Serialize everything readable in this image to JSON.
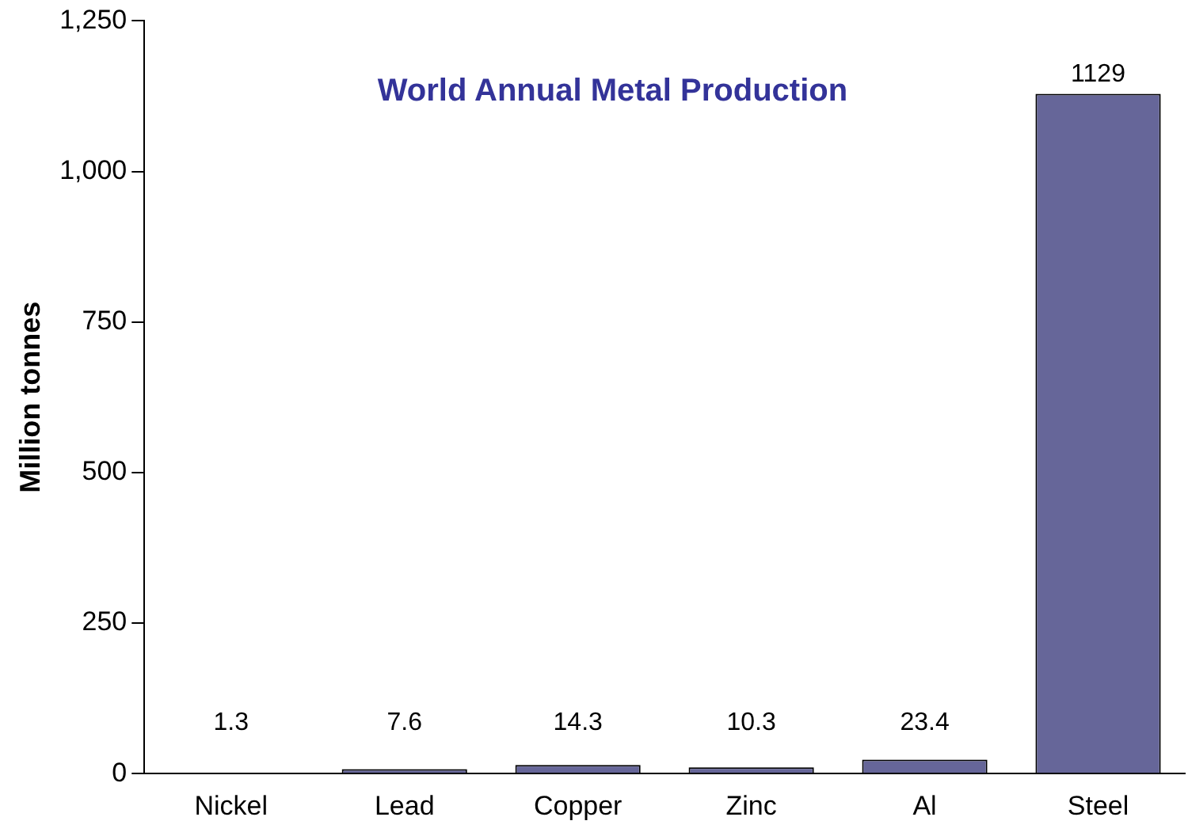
{
  "chart_data": {
    "type": "bar",
    "title": "World Annual Metal Production",
    "ylabel": "Million tonnes",
    "categories": [
      "Nickel",
      "Lead",
      "Copper",
      "Zinc",
      "Al",
      "Steel"
    ],
    "values": [
      1.3,
      7.6,
      14.3,
      10.3,
      23.4,
      1129
    ],
    "color": "#666699",
    "ylim": [
      0,
      1250
    ],
    "yticks": [
      0,
      250,
      500,
      750,
      {
        "value": 1000,
        "label": "1,000"
      },
      {
        "value": 1250,
        "label": "1,250"
      }
    ],
    "value_labels": [
      "1.3",
      "7.6",
      "14.3",
      "10.3",
      "23.4",
      "1129"
    ],
    "grid": false,
    "legend": false
  }
}
